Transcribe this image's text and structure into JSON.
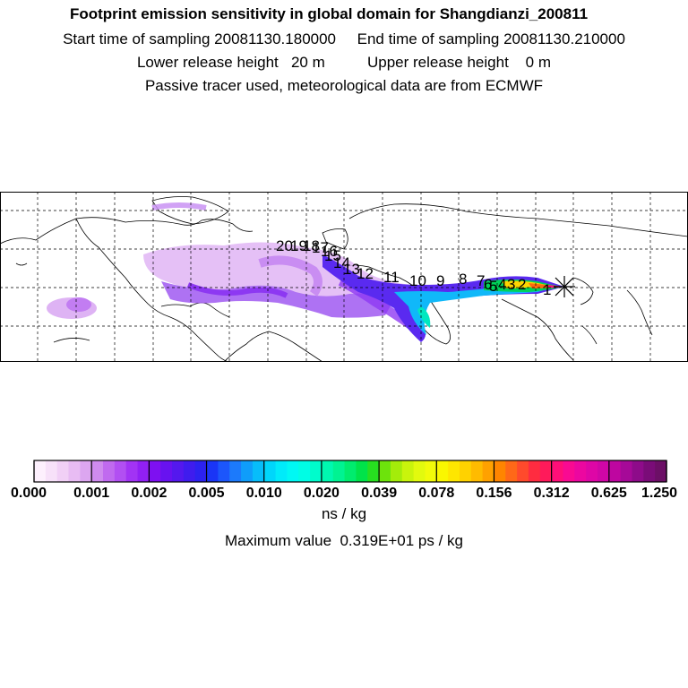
{
  "header": {
    "title": "Footprint emission sensitivity in global domain for Shangdianzi_200811",
    "sampling_line": "Start time of sampling 20081130.180000     End time of sampling 20081130.210000",
    "release_line": "Lower release height   20 m          Upper release height    0 m",
    "tracer_line": "Passive tracer used, meteorological data are from ECMWF"
  },
  "map": {
    "domain": "global",
    "station_marker": "asterisk-icon",
    "trajectory_labels": [
      "1",
      "2",
      "3",
      "4",
      "5",
      "6",
      "7",
      "8",
      "9",
      "10",
      "11",
      "12",
      "13",
      "14",
      "15",
      "16",
      "17",
      "18",
      "19",
      "20"
    ]
  },
  "colorbar": {
    "tick_labels": [
      "0.000",
      "0.001",
      "0.002",
      "0.005",
      "0.010",
      "0.020",
      "0.039",
      "0.078",
      "0.156",
      "0.312",
      "0.625",
      "1.250"
    ],
    "colors": [
      "#fdf0fd",
      "#f7e1f9",
      "#f1d0f6",
      "#e8bcf3",
      "#dca6f0",
      "#cf8bee",
      "#c06aef",
      "#b24ff2",
      "#a233f4",
      "#9120f4",
      "#7e10f1",
      "#6812f0",
      "#5418ee",
      "#3f1cee",
      "#2c22f0",
      "#1a35f6",
      "#1c56fb",
      "#1c7afb",
      "#0f9dfa",
      "#07bdfa",
      "#00d6fb",
      "#00ebfa",
      "#00f8f4",
      "#00fde5",
      "#00fccc",
      "#00f8b0",
      "#00f392",
      "#00ec6e",
      "#00e34a",
      "#27df20",
      "#6de30c",
      "#a4ec0a",
      "#c9f40c",
      "#e2fa0e",
      "#f2fb0a",
      "#faf700",
      "#fee600",
      "#ffd200",
      "#ffbb00",
      "#ffa100",
      "#ff8500",
      "#ff6818",
      "#ff4a2c",
      "#ff2c40",
      "#ff1a5a",
      "#ff0f78",
      "#f90a92",
      "#ec07a0",
      "#de06a6",
      "#d006a6",
      "#be06a0",
      "#a60998",
      "#8e0b8a",
      "#7a0c78",
      "#6c0f66"
    ],
    "unit": "ns / kg",
    "max_value": "Maximum value  0.319E+01 ps / kg"
  }
}
